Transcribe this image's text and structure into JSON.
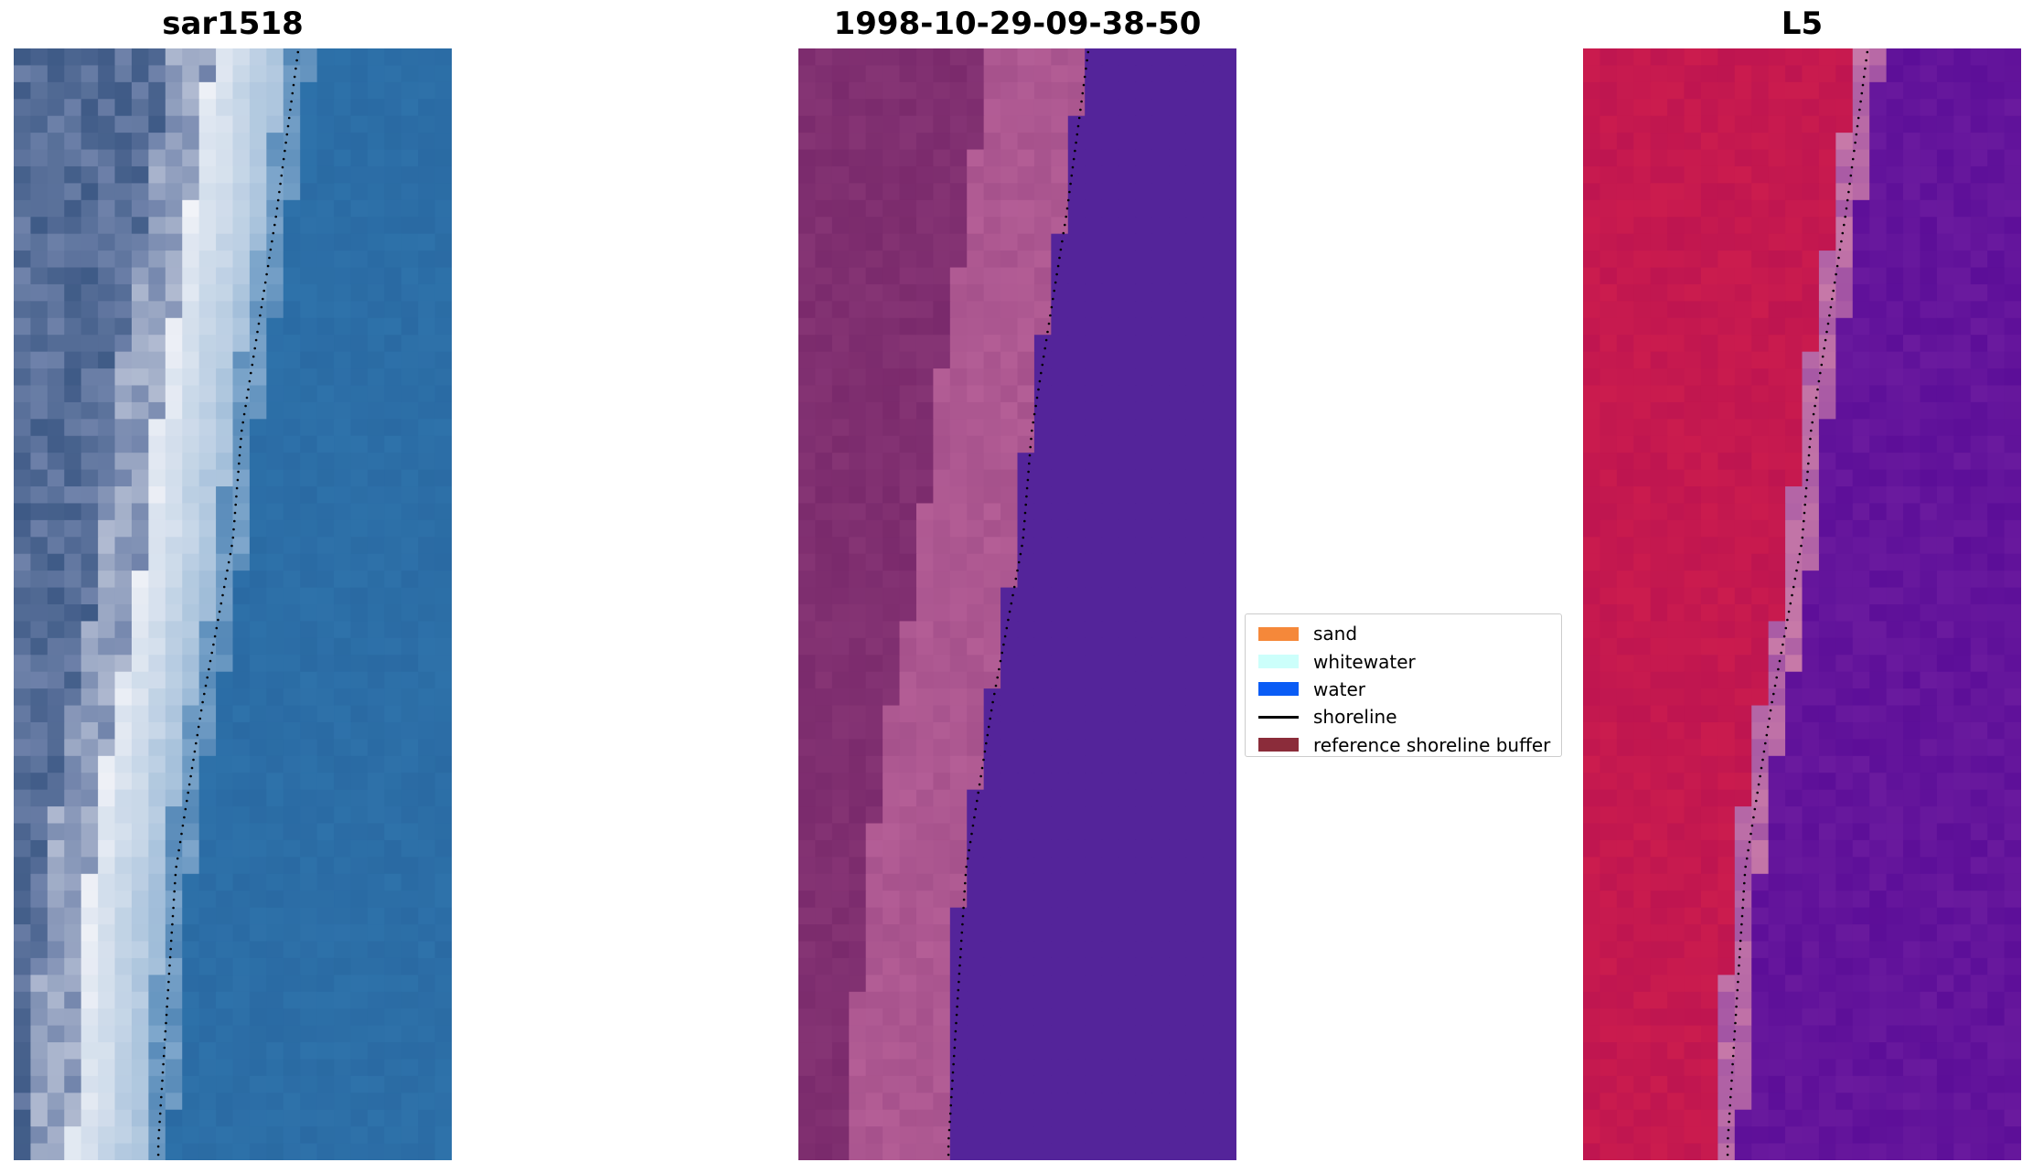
{
  "panels": [
    {
      "title": "sar1518",
      "colors": {
        "dark": "#3e5a86",
        "mid": "#6f82aa",
        "bright": "#f2f3f8",
        "wet": "#7fa7cc",
        "water": "#2a6aa3",
        "water_alt": "#2e72aa"
      }
    },
    {
      "title": "1998-10-29-09-38-50",
      "colors": {
        "land": "#7a2a6c",
        "sand": "#b45e96",
        "water": "#54249a"
      }
    },
    {
      "title": "L5",
      "colors": {
        "land": "#cb1c4e",
        "land_alt": "#be1550",
        "mid": "#c87aa8",
        "water": "#6a1a9e",
        "water_alt": "#5c0e98"
      }
    }
  ],
  "shoreline_color": "#000000",
  "legend": {
    "items": [
      {
        "label": "sand",
        "kind": "patch",
        "color": "#f5883a"
      },
      {
        "label": "whitewater",
        "kind": "patch",
        "color": "#ccfffb"
      },
      {
        "label": "water",
        "kind": "patch",
        "color": "#0a5cf5"
      },
      {
        "label": "shoreline",
        "kind": "line",
        "color": "#000000"
      },
      {
        "label": "reference shoreline buffer",
        "kind": "patch",
        "color": "#8b2c3a"
      }
    ]
  }
}
